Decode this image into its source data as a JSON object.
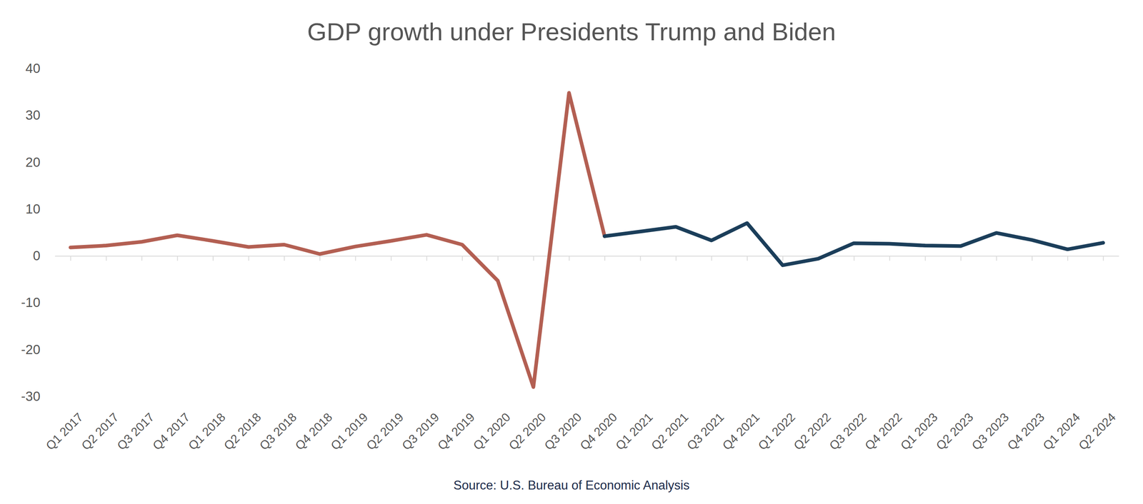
{
  "chart_data": {
    "type": "line",
    "title": "GDP growth under Presidents Trump and Biden",
    "source": "Source: U.S. Bureau of Economic Analysis",
    "categories": [
      "Q1 2017",
      "Q2 2017",
      "Q3 2017",
      "Q4 2017",
      "Q1 2018",
      "Q2 2018",
      "Q3 2018",
      "Q4 2018",
      "Q1 2019",
      "Q2 2019",
      "Q3 2019",
      "Q4 2019",
      "Q1 2020",
      "Q2 2020",
      "Q3 2020",
      "Q4 2020",
      "Q1 2021",
      "Q2 2021",
      "Q3 2021",
      "Q4 2021",
      "Q1 2022",
      "Q2 2022",
      "Q3 2022",
      "Q4 2022",
      "Q1 2023",
      "Q2 2023",
      "Q3 2023",
      "Q4 2023",
      "Q1 2024",
      "Q2 2024"
    ],
    "series": [
      {
        "color": "#b35f52",
        "values": [
          1.8,
          2.2,
          3.0,
          4.4,
          3.2,
          1.9,
          2.4,
          0.4,
          2.0,
          3.2,
          4.5,
          2.4,
          -5.3,
          -28.0,
          34.8,
          4.2,
          null,
          null,
          null,
          null,
          null,
          null,
          null,
          null,
          null,
          null,
          null,
          null,
          null,
          null
        ]
      },
      {
        "color": "#1b3e5a",
        "values": [
          null,
          null,
          null,
          null,
          null,
          null,
          null,
          null,
          null,
          null,
          null,
          null,
          null,
          null,
          null,
          4.2,
          5.2,
          6.2,
          3.3,
          7.0,
          -2.0,
          -0.6,
          2.7,
          2.6,
          2.2,
          2.1,
          4.9,
          3.4,
          1.4,
          2.8
        ]
      }
    ],
    "ylim": [
      -30,
      40
    ],
    "yticks": [
      -30,
      -20,
      -10,
      0,
      10,
      20,
      30,
      40
    ],
    "grid": false
  }
}
